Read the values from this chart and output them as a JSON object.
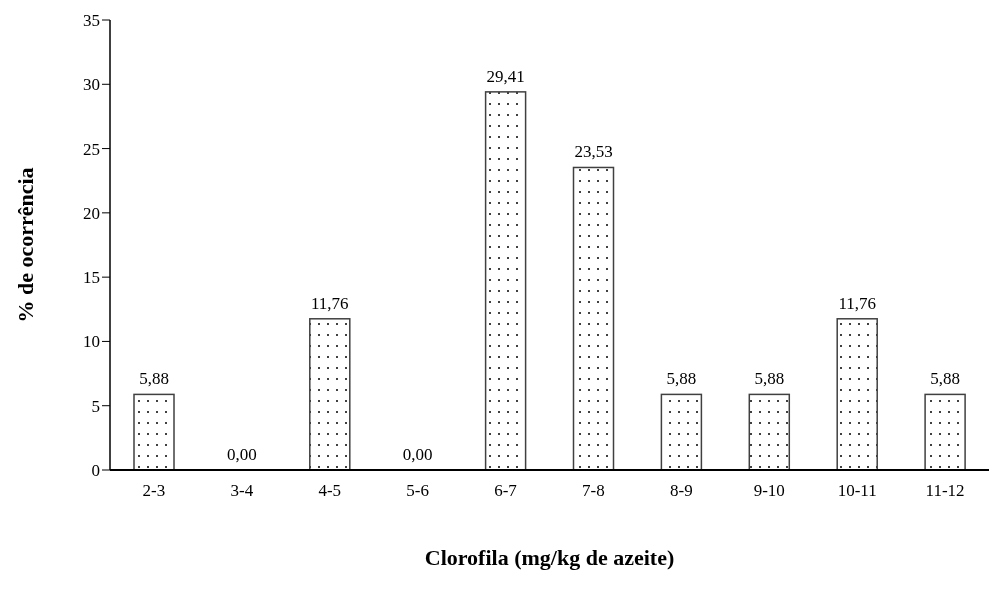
{
  "chart_data": {
    "type": "bar",
    "xlabel": "Clorofila (mg/kg de azeite)",
    "ylabel": "% de ocorrência",
    "categories": [
      "2-3",
      "3-4",
      "4-5",
      "5-6",
      "6-7",
      "7-8",
      "8-9",
      "9-10",
      "10-11",
      "11-12"
    ],
    "values": [
      5.88,
      0,
      11.76,
      0,
      29.41,
      23.53,
      5.88,
      5.88,
      11.76,
      5.88
    ],
    "value_labels": [
      "5,88",
      "0,00",
      "11,76",
      "0,00",
      "29,41",
      "23,53",
      "5,88",
      "5,88",
      "11,76",
      "5,88"
    ],
    "color": "#404040",
    "ylim": [
      0,
      35
    ],
    "yticks": [
      0,
      5,
      10,
      15,
      20,
      25,
      30,
      35
    ],
    "grid": false,
    "legend": false
  }
}
